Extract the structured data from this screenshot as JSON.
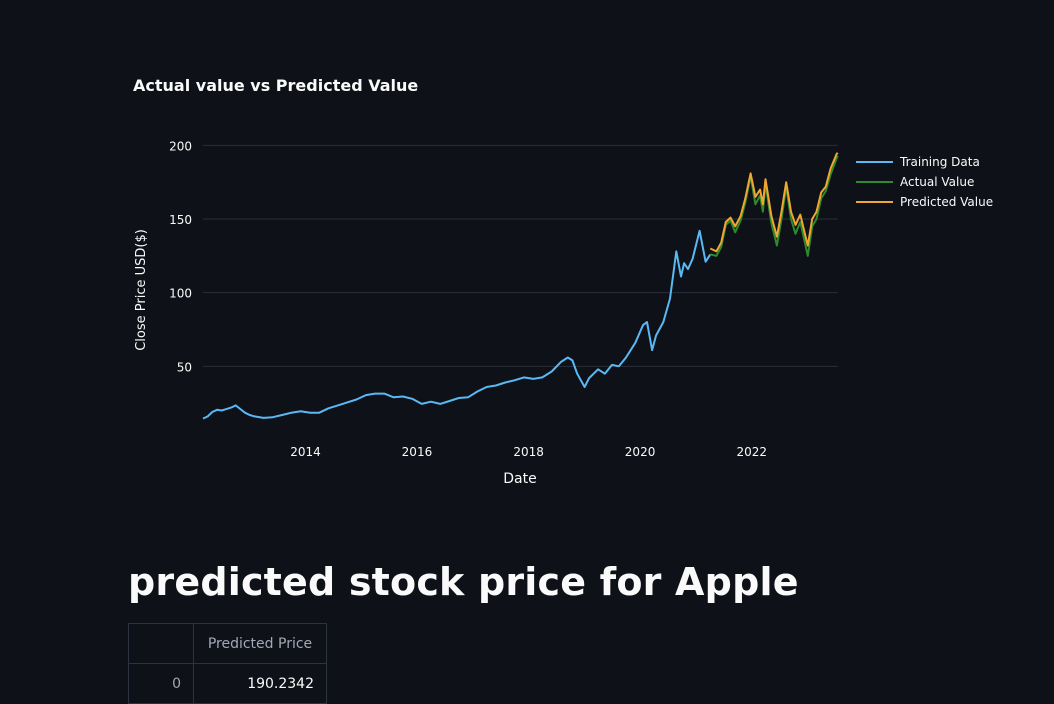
{
  "chart_title": "Actual value vs Predicted Value",
  "chart_data": {
    "type": "line",
    "title": "Actual value vs Predicted Value",
    "xlabel": "Date",
    "ylabel": "Close Price USD($)",
    "x_tick_labels": [
      "2014",
      "2016",
      "2018",
      "2020",
      "2022"
    ],
    "y_ticks": [
      50,
      100,
      150,
      200
    ],
    "xlim": [
      "2012-03-01",
      "2023-07-20"
    ],
    "ylim": [
      0,
      205
    ],
    "grid": "horizontal",
    "legend_position": "top-right outside",
    "series": [
      {
        "name": "Training Data",
        "color": "#5ab9f5",
        "points": [
          [
            "2012-03-01",
            14.5
          ],
          [
            "2012-04-01",
            16
          ],
          [
            "2012-05-01",
            19
          ],
          [
            "2012-06-01",
            20.5
          ],
          [
            "2012-07-01",
            20
          ],
          [
            "2012-08-01",
            21
          ],
          [
            "2012-09-01",
            22
          ],
          [
            "2012-10-01",
            23.5
          ],
          [
            "2012-11-01",
            21
          ],
          [
            "2012-12-01",
            18.5
          ],
          [
            "2013-01-01",
            17
          ],
          [
            "2013-02-01",
            16
          ],
          [
            "2013-04-01",
            15
          ],
          [
            "2013-06-01",
            15.5
          ],
          [
            "2013-08-01",
            17
          ],
          [
            "2013-10-01",
            18.5
          ],
          [
            "2013-12-01",
            19.5
          ],
          [
            "2014-02-01",
            18.5
          ],
          [
            "2014-04-01",
            18.5
          ],
          [
            "2014-06-01",
            21.5
          ],
          [
            "2014-08-01",
            23.5
          ],
          [
            "2014-10-01",
            25.5
          ],
          [
            "2014-12-01",
            27.5
          ],
          [
            "2015-02-01",
            30.5
          ],
          [
            "2015-04-01",
            31.5
          ],
          [
            "2015-06-01",
            31.5
          ],
          [
            "2015-08-01",
            29
          ],
          [
            "2015-10-01",
            29.5
          ],
          [
            "2015-12-01",
            28
          ],
          [
            "2016-02-01",
            24.5
          ],
          [
            "2016-04-01",
            26
          ],
          [
            "2016-06-01",
            24.5
          ],
          [
            "2016-08-01",
            26.5
          ],
          [
            "2016-10-01",
            28.5
          ],
          [
            "2016-12-01",
            29
          ],
          [
            "2017-02-01",
            33
          ],
          [
            "2017-04-01",
            36
          ],
          [
            "2017-06-01",
            37
          ],
          [
            "2017-08-01",
            39
          ],
          [
            "2017-10-01",
            40.5
          ],
          [
            "2017-12-01",
            42.5
          ],
          [
            "2018-02-01",
            41.5
          ],
          [
            "2018-04-01",
            42.5
          ],
          [
            "2018-06-01",
            46.5
          ],
          [
            "2018-08-01",
            53
          ],
          [
            "2018-09-15",
            56
          ],
          [
            "2018-10-15",
            54
          ],
          [
            "2018-11-15",
            45
          ],
          [
            "2019-01-03",
            36
          ],
          [
            "2019-02-01",
            42
          ],
          [
            "2019-04-01",
            48
          ],
          [
            "2019-05-15",
            45
          ],
          [
            "2019-07-01",
            51
          ],
          [
            "2019-08-15",
            50
          ],
          [
            "2019-10-01",
            56
          ],
          [
            "2019-12-01",
            66
          ],
          [
            "2020-01-20",
            78
          ],
          [
            "2020-02-15",
            80
          ],
          [
            "2020-03-20",
            61
          ],
          [
            "2020-04-15",
            71
          ],
          [
            "2020-06-01",
            80
          ],
          [
            "2020-07-15",
            96
          ],
          [
            "2020-08-25",
            128
          ],
          [
            "2020-09-25",
            111
          ],
          [
            "2020-10-15",
            120
          ],
          [
            "2020-11-10",
            116
          ],
          [
            "2020-12-10",
            123
          ],
          [
            "2021-01-25",
            142
          ],
          [
            "2021-03-05",
            121
          ],
          [
            "2021-04-05",
            126
          ]
        ]
      },
      {
        "name": "Actual Value",
        "color": "#2d8a2d",
        "points": [
          [
            "2021-04-05",
            126
          ],
          [
            "2021-05-15",
            125
          ],
          [
            "2021-06-15",
            131
          ],
          [
            "2021-07-15",
            146
          ],
          [
            "2021-08-15",
            149
          ],
          [
            "2021-09-15",
            141
          ],
          [
            "2021-10-20",
            149
          ],
          [
            "2021-11-20",
            161
          ],
          [
            "2021-12-25",
            179
          ],
          [
            "2022-01-25",
            160
          ],
          [
            "2022-02-25",
            166
          ],
          [
            "2022-03-15",
            155
          ],
          [
            "2022-04-01",
            174
          ],
          [
            "2022-05-10",
            147
          ],
          [
            "2022-06-15",
            132
          ],
          [
            "2022-07-15",
            150
          ],
          [
            "2022-08-15",
            172
          ],
          [
            "2022-09-15",
            150
          ],
          [
            "2022-10-15",
            140
          ],
          [
            "2022-11-15",
            148
          ],
          [
            "2022-12-15",
            134
          ],
          [
            "2023-01-03",
            125
          ],
          [
            "2023-02-01",
            145
          ],
          [
            "2023-03-01",
            150
          ],
          [
            "2023-04-01",
            164
          ],
          [
            "2023-05-01",
            169
          ],
          [
            "2023-06-01",
            180
          ],
          [
            "2023-07-10",
            191
          ],
          [
            "2023-07-18",
            193
          ]
        ]
      },
      {
        "name": "Predicted Value",
        "color": "#f0a631",
        "points": [
          [
            "2021-04-05",
            130
          ],
          [
            "2021-05-15",
            128
          ],
          [
            "2021-06-15",
            134
          ],
          [
            "2021-07-15",
            148
          ],
          [
            "2021-08-15",
            151
          ],
          [
            "2021-09-15",
            145
          ],
          [
            "2021-10-20",
            152
          ],
          [
            "2021-11-20",
            164
          ],
          [
            "2021-12-25",
            181
          ],
          [
            "2022-01-25",
            165
          ],
          [
            "2022-02-25",
            170
          ],
          [
            "2022-03-15",
            160
          ],
          [
            "2022-04-01",
            177
          ],
          [
            "2022-05-10",
            152
          ],
          [
            "2022-06-15",
            138
          ],
          [
            "2022-07-15",
            155
          ],
          [
            "2022-08-15",
            175
          ],
          [
            "2022-09-15",
            155
          ],
          [
            "2022-10-15",
            146
          ],
          [
            "2022-11-15",
            153
          ],
          [
            "2022-12-15",
            140
          ],
          [
            "2023-01-03",
            132
          ],
          [
            "2023-02-01",
            150
          ],
          [
            "2023-03-01",
            155
          ],
          [
            "2023-04-01",
            168
          ],
          [
            "2023-05-01",
            172
          ],
          [
            "2023-06-01",
            184
          ],
          [
            "2023-07-10",
            194
          ],
          [
            "2023-07-18",
            195
          ]
        ]
      }
    ]
  },
  "section_heading": "predicted stock price for Apple",
  "table": {
    "index_header": "",
    "column_header": "Predicted Price",
    "rows": [
      {
        "index": "0",
        "value": "190.2342"
      }
    ]
  }
}
